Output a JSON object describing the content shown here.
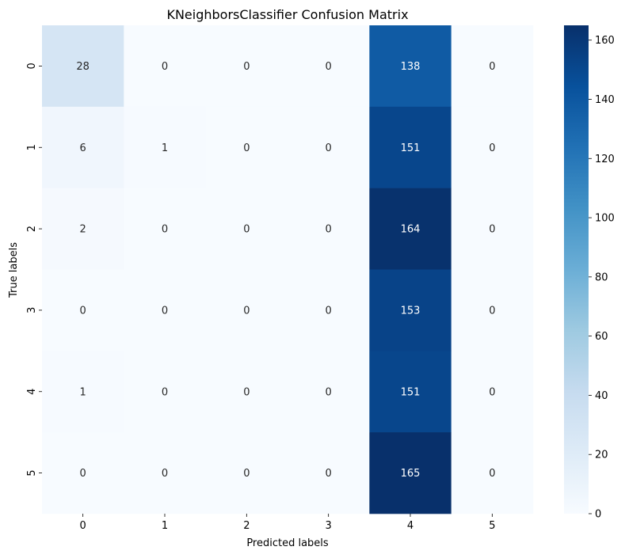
{
  "chart_data": {
    "type": "heatmap",
    "title": "KNeighborsClassifier Confusion Matrix",
    "xlabel": "Predicted labels",
    "ylabel": "True labels",
    "x_categories": [
      "0",
      "1",
      "2",
      "3",
      "4",
      "5"
    ],
    "y_categories": [
      "0",
      "1",
      "2",
      "3",
      "4",
      "5"
    ],
    "values": [
      [
        28,
        0,
        0,
        0,
        138,
        0
      ],
      [
        6,
        1,
        0,
        0,
        151,
        0
      ],
      [
        2,
        0,
        0,
        0,
        164,
        0
      ],
      [
        0,
        0,
        0,
        0,
        153,
        0
      ],
      [
        1,
        0,
        0,
        0,
        151,
        0
      ],
      [
        0,
        0,
        0,
        0,
        165,
        0
      ]
    ],
    "colormap": "Blues",
    "vmin": 0,
    "vmax": 165,
    "colorbar_ticks": [
      0,
      20,
      40,
      60,
      80,
      100,
      120,
      140,
      160
    ],
    "colorbar_tick_labels": [
      "0",
      "20",
      "40",
      "60",
      "80",
      "100",
      "120",
      "140",
      "160"
    ],
    "colorbar_position": "right",
    "grid": false,
    "annotations": true
  }
}
